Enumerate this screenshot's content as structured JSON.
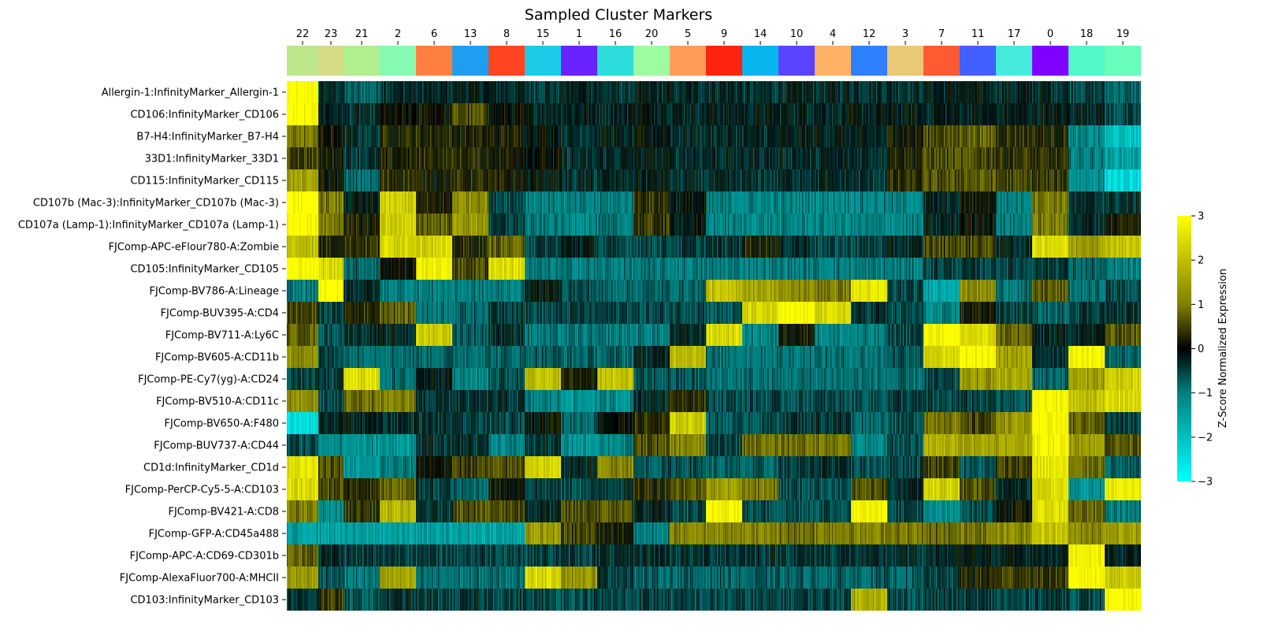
{
  "chart_data": {
    "type": "heatmap",
    "title": "Sampled Cluster Markers",
    "colorbar": {
      "label": "Z-Score Normalized Expression",
      "ticks": [
        "−3",
        "−2",
        "−1",
        "0",
        "1",
        "2",
        "3"
      ],
      "range": [
        -3,
        3
      ],
      "colors": [
        "#00ffff",
        "#008080",
        "#000000",
        "#808000",
        "#ffff00"
      ]
    },
    "clusters": [
      {
        "id": "22",
        "color": "#bde68a"
      },
      {
        "id": "23",
        "color": "#d5dc85"
      },
      {
        "id": "21",
        "color": "#b0ef8e"
      },
      {
        "id": "2",
        "color": "#86fab0"
      },
      {
        "id": "6",
        "color": "#ff7f40"
      },
      {
        "id": "13",
        "color": "#1e9ef0"
      },
      {
        "id": "8",
        "color": "#ff4422"
      },
      {
        "id": "15",
        "color": "#1ccce6"
      },
      {
        "id": "1",
        "color": "#6a22ff"
      },
      {
        "id": "16",
        "color": "#2ddcdc"
      },
      {
        "id": "20",
        "color": "#9dfba0"
      },
      {
        "id": "5",
        "color": "#ff9d58"
      },
      {
        "id": "9",
        "color": "#ff2410"
      },
      {
        "id": "14",
        "color": "#06b4ee"
      },
      {
        "id": "10",
        "color": "#5a44ff"
      },
      {
        "id": "4",
        "color": "#ffb266"
      },
      {
        "id": "12",
        "color": "#2e80ff"
      },
      {
        "id": "3",
        "color": "#ebc877"
      },
      {
        "id": "7",
        "color": "#ff5a32"
      },
      {
        "id": "11",
        "color": "#4260ff"
      },
      {
        "id": "17",
        "color": "#46eadd"
      },
      {
        "id": "0",
        "color": "#7f00ff"
      },
      {
        "id": "18",
        "color": "#52f8c8"
      },
      {
        "id": "19",
        "color": "#68fdbb"
      }
    ],
    "markers": [
      "Allergin-1:InfinityMarker_Allergin-1",
      "CD106:InfinityMarker_CD106",
      "B7-H4:InfinityMarker_B7-H4",
      "33D1:InfinityMarker_33D1",
      "CD115:InfinityMarker_CD115",
      "CD107b (Mac-3):InfinityMarker_CD107b (Mac-3)",
      "CD107a (Lamp-1):InfinityMarker_CD107a (Lamp-1)",
      "FJComp-APC-eFlour780-A:Zombie",
      "CD105:InfinityMarker_CD105",
      "FJComp-BV786-A:Lineage",
      "FJComp-BUV395-A:CD4",
      "FJComp-BV711-A:Ly6C",
      "FJComp-BV605-A:CD11b",
      "FJComp-PE-Cy7(yg)-A:CD24",
      "FJComp-BV510-A:CD11c",
      "FJComp-BV650-A:F480",
      "FJComp-BUV737-A:CD44",
      "CD1d:InfinityMarker_CD1d",
      "FJComp-PerCP-Cy5-5-A:CD103",
      "FJComp-BV421-A:CD8",
      "FJComp-GFP-A:CD45a488",
      "FJComp-APC-A:CD69-CD301b",
      "FJComp-AlexaFluor700-A:MHCII",
      "CD103:InfinityMarker_CD103"
    ],
    "column_widths": [
      40,
      32,
      46,
      46,
      46,
      46,
      46,
      46,
      46,
      46,
      46,
      46,
      46,
      46,
      46,
      46,
      46,
      46,
      46,
      46,
      46,
      46,
      46,
      46
    ],
    "mean_z": [
      [
        3.0,
        -0.3,
        -0.8,
        -0.3,
        -0.3,
        -0.2,
        -0.3,
        -0.4,
        -0.2,
        -0.4,
        -0.3,
        -0.3,
        -0.3,
        -0.4,
        -0.3,
        -0.3,
        -0.3,
        -0.3,
        -0.2,
        -0.2,
        -0.3,
        -0.3,
        -0.5,
        -0.8
      ],
      [
        3.0,
        -0.2,
        -0.4,
        0.0,
        0.1,
        0.6,
        0.0,
        -0.2,
        -0.2,
        -0.2,
        -0.1,
        -0.2,
        -0.2,
        -0.2,
        -0.2,
        -0.2,
        -0.2,
        -0.2,
        -0.2,
        -0.2,
        -0.2,
        -0.2,
        -0.2,
        -0.6
      ],
      [
        1.0,
        0.1,
        -0.4,
        0.3,
        0.3,
        0.2,
        0.2,
        0.0,
        -0.3,
        -0.2,
        -0.1,
        -0.3,
        -0.3,
        -0.3,
        -0.2,
        -0.2,
        -0.3,
        0.2,
        0.6,
        0.8,
        0.4,
        0.3,
        -1.2,
        -2.0
      ],
      [
        0.5,
        0.2,
        -0.4,
        0.2,
        0.3,
        0.3,
        0.2,
        0.0,
        -0.4,
        -0.3,
        -0.2,
        -0.3,
        -0.3,
        -0.3,
        -0.3,
        -0.3,
        -0.3,
        0.3,
        0.6,
        0.6,
        0.4,
        0.3,
        -1.0,
        -1.5
      ],
      [
        1.5,
        0.1,
        -0.9,
        0.4,
        0.2,
        0.3,
        0.2,
        -0.1,
        -0.4,
        -0.3,
        -0.2,
        -0.4,
        -0.4,
        -0.4,
        -0.3,
        -0.3,
        -0.4,
        0.3,
        0.6,
        0.7,
        0.5,
        0.4,
        -1.2,
        -2.4
      ],
      [
        3.0,
        1.0,
        -0.2,
        2.2,
        0.2,
        1.3,
        -0.5,
        -1.0,
        -1.1,
        -1.0,
        0.4,
        -0.1,
        -1.1,
        -1.1,
        -1.1,
        -1.1,
        -1.1,
        -1.1,
        -0.3,
        0.1,
        -1.0,
        1.0,
        -0.4,
        -0.4
      ],
      [
        3.0,
        1.0,
        0.2,
        2.2,
        0.8,
        1.4,
        -0.5,
        -1.0,
        -1.1,
        -1.0,
        0.4,
        -0.1,
        -1.1,
        -1.1,
        -1.1,
        -1.1,
        -1.1,
        -1.1,
        -0.3,
        0.1,
        -1.0,
        1.0,
        -0.3,
        0.2
      ],
      [
        2.0,
        0.3,
        0.4,
        2.4,
        2.3,
        0.3,
        0.8,
        -0.5,
        -0.2,
        -0.6,
        -0.5,
        -0.5,
        -0.4,
        0.3,
        -0.3,
        -0.6,
        -0.5,
        -0.3,
        0.6,
        0.6,
        -0.3,
        2.5,
        1.5,
        2.1
      ],
      [
        3.0,
        2.4,
        -0.8,
        0.1,
        2.8,
        0.6,
        2.5,
        -1.0,
        -1.0,
        -1.0,
        -1.0,
        -1.0,
        -1.0,
        -1.0,
        -1.0,
        -1.0,
        -1.0,
        -1.0,
        -0.5,
        -0.5,
        -0.5,
        -0.4,
        -0.8,
        -1.1
      ],
      [
        -1.0,
        3.0,
        -0.3,
        -1.0,
        -1.0,
        -1.0,
        -1.0,
        -0.1,
        -0.6,
        -0.8,
        -0.8,
        -0.8,
        2.0,
        1.6,
        1.2,
        1.0,
        2.6,
        -0.6,
        -1.5,
        1.2,
        -0.9,
        0.7,
        -0.9,
        -0.6
      ],
      [
        0.5,
        -0.5,
        0.3,
        0.8,
        -0.9,
        -0.8,
        -0.4,
        -0.6,
        -0.5,
        -0.5,
        -0.6,
        -0.5,
        -0.7,
        2.3,
        2.9,
        2.4,
        -0.4,
        -0.6,
        -1.2,
        0.2,
        -0.5,
        -0.8,
        -0.4,
        -0.4
      ],
      [
        0.8,
        -0.6,
        -0.3,
        -0.3,
        2.2,
        -0.7,
        -0.3,
        -1.0,
        -1.0,
        -1.0,
        -1.0,
        -0.3,
        2.4,
        -1.1,
        0.2,
        -1.1,
        -1.1,
        -0.5,
        2.9,
        2.4,
        0.8,
        -0.3,
        -0.2,
        0.7
      ],
      [
        1.3,
        -0.5,
        -0.8,
        -0.8,
        -0.8,
        -0.8,
        -0.8,
        -0.7,
        -0.8,
        -0.8,
        -0.3,
        2.0,
        -0.9,
        -0.9,
        -0.9,
        -0.9,
        -0.9,
        -0.6,
        2.3,
        2.9,
        1.5,
        -0.3,
        2.9,
        -0.8
      ],
      [
        -0.5,
        -0.5,
        2.5,
        -0.9,
        -0.1,
        -1.1,
        -0.6,
        2.0,
        0.2,
        2.0,
        -0.7,
        -0.7,
        -0.9,
        -0.9,
        -0.9,
        -0.9,
        -0.9,
        -0.9,
        -0.6,
        1.4,
        1.6,
        -0.8,
        1.5,
        2.2
      ],
      [
        1.2,
        -0.6,
        0.9,
        1.0,
        -0.4,
        -0.4,
        -0.4,
        -1.1,
        -1.3,
        -1.2,
        -0.3,
        0.4,
        -0.6,
        -0.6,
        -0.6,
        -0.6,
        -0.6,
        -0.5,
        -0.6,
        -0.5,
        -0.7,
        2.9,
        2.0,
        2.4
      ],
      [
        -2.5,
        -0.2,
        -0.2,
        -0.3,
        -0.4,
        -0.5,
        -0.6,
        0.1,
        -0.8,
        0.0,
        0.3,
        2.2,
        -0.7,
        -0.6,
        -0.4,
        -0.4,
        -0.8,
        -0.6,
        1.0,
        0.5,
        1.4,
        2.9,
        0.8,
        -0.5
      ],
      [
        -0.6,
        -1.1,
        -1.3,
        -1.3,
        -0.4,
        -0.3,
        -1.1,
        -0.4,
        -1.3,
        -1.1,
        0.6,
        1.1,
        -0.5,
        0.9,
        0.9,
        1.0,
        -1.2,
        -0.6,
        1.7,
        1.6,
        1.6,
        2.9,
        1.5,
        0.7
      ],
      [
        2.6,
        0.6,
        -1.4,
        -1.0,
        0.1,
        0.5,
        0.6,
        2.3,
        -0.2,
        1.2,
        -0.7,
        -0.6,
        -0.8,
        -0.8,
        -0.5,
        -0.3,
        -0.6,
        -0.5,
        0.5,
        -0.7,
        0.5,
        2.6,
        0.9,
        -0.8
      ],
      [
        2.4,
        0.6,
        0.3,
        0.8,
        -0.5,
        -0.8,
        0.1,
        -0.5,
        -0.6,
        -0.4,
        0.4,
        0.7,
        1.5,
        1.0,
        -0.6,
        -0.6,
        0.6,
        -0.3,
        2.3,
        0.7,
        -0.3,
        2.4,
        -1.3,
        2.7
      ],
      [
        1.0,
        -1.2,
        0.4,
        1.8,
        -0.4,
        0.7,
        0.6,
        -0.3,
        0.6,
        0.7,
        -0.3,
        -0.6,
        2.9,
        -0.6,
        -0.6,
        -0.6,
        2.9,
        -0.5,
        -1.3,
        -0.6,
        0.1,
        2.5,
        0.8,
        -1.0
      ],
      [
        -1.5,
        -1.5,
        -1.5,
        -1.5,
        -1.5,
        -1.5,
        -1.5,
        1.4,
        0.5,
        0.2,
        -1.0,
        1.1,
        1.2,
        1.1,
        0.9,
        1.1,
        1.1,
        1.0,
        0.8,
        1.0,
        1.2,
        2.1,
        1.2,
        1.5
      ],
      [
        0.8,
        -0.3,
        -0.5,
        -0.4,
        -0.5,
        -0.5,
        -0.5,
        -0.5,
        -0.5,
        -0.4,
        -0.3,
        -0.4,
        -0.4,
        -0.4,
        -0.4,
        -0.4,
        -0.4,
        -0.4,
        -0.3,
        -0.2,
        -0.2,
        -0.2,
        2.9,
        -0.2
      ],
      [
        1.4,
        -0.6,
        -1.0,
        1.5,
        -0.9,
        -0.9,
        -0.9,
        2.4,
        1.4,
        -0.4,
        -0.8,
        -0.8,
        -0.8,
        -0.8,
        -0.8,
        -0.8,
        -0.8,
        -0.8,
        -0.5,
        0.3,
        0.5,
        0.4,
        2.9,
        2.2
      ],
      [
        -0.4,
        0.4,
        -0.7,
        -0.4,
        -0.5,
        -0.5,
        -0.5,
        -0.6,
        -0.6,
        -0.6,
        -0.5,
        -0.6,
        -0.6,
        -0.6,
        -0.5,
        -0.5,
        1.8,
        -0.6,
        -0.5,
        -0.5,
        -0.6,
        -0.4,
        -0.6,
        2.9
      ]
    ]
  }
}
